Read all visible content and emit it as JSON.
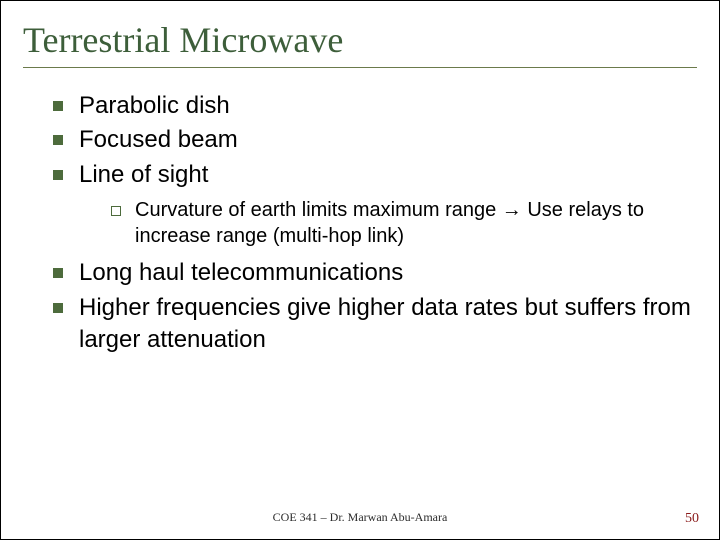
{
  "title": "Terrestrial Microwave",
  "bullets": {
    "b1": "Parabolic dish",
    "b2": "Focused beam",
    "b3": "Line of sight",
    "b3sub": "Curvature of earth limits maximum range → Use relays to increase range (multi-hop link)",
    "b4": "Long haul telecommunications",
    "b5": "Higher frequencies give higher data rates but suffers from larger attenuation"
  },
  "footer": "COE 341 – Dr. Marwan Abu-Amara",
  "slide_number": "50",
  "colors": {
    "title_color": "#3d5e3a",
    "rule_color": "#6b7a4b",
    "bullet_color": "#4d6b3c",
    "slide_number_color": "#8a1a1a",
    "background": "#ffffff"
  },
  "typography": {
    "title_font": "Times New Roman",
    "title_size_pt": 28,
    "body_font": "Arial",
    "body_size_pt": 18,
    "sub_body_size_pt": 15,
    "footer_size_pt": 9
  }
}
